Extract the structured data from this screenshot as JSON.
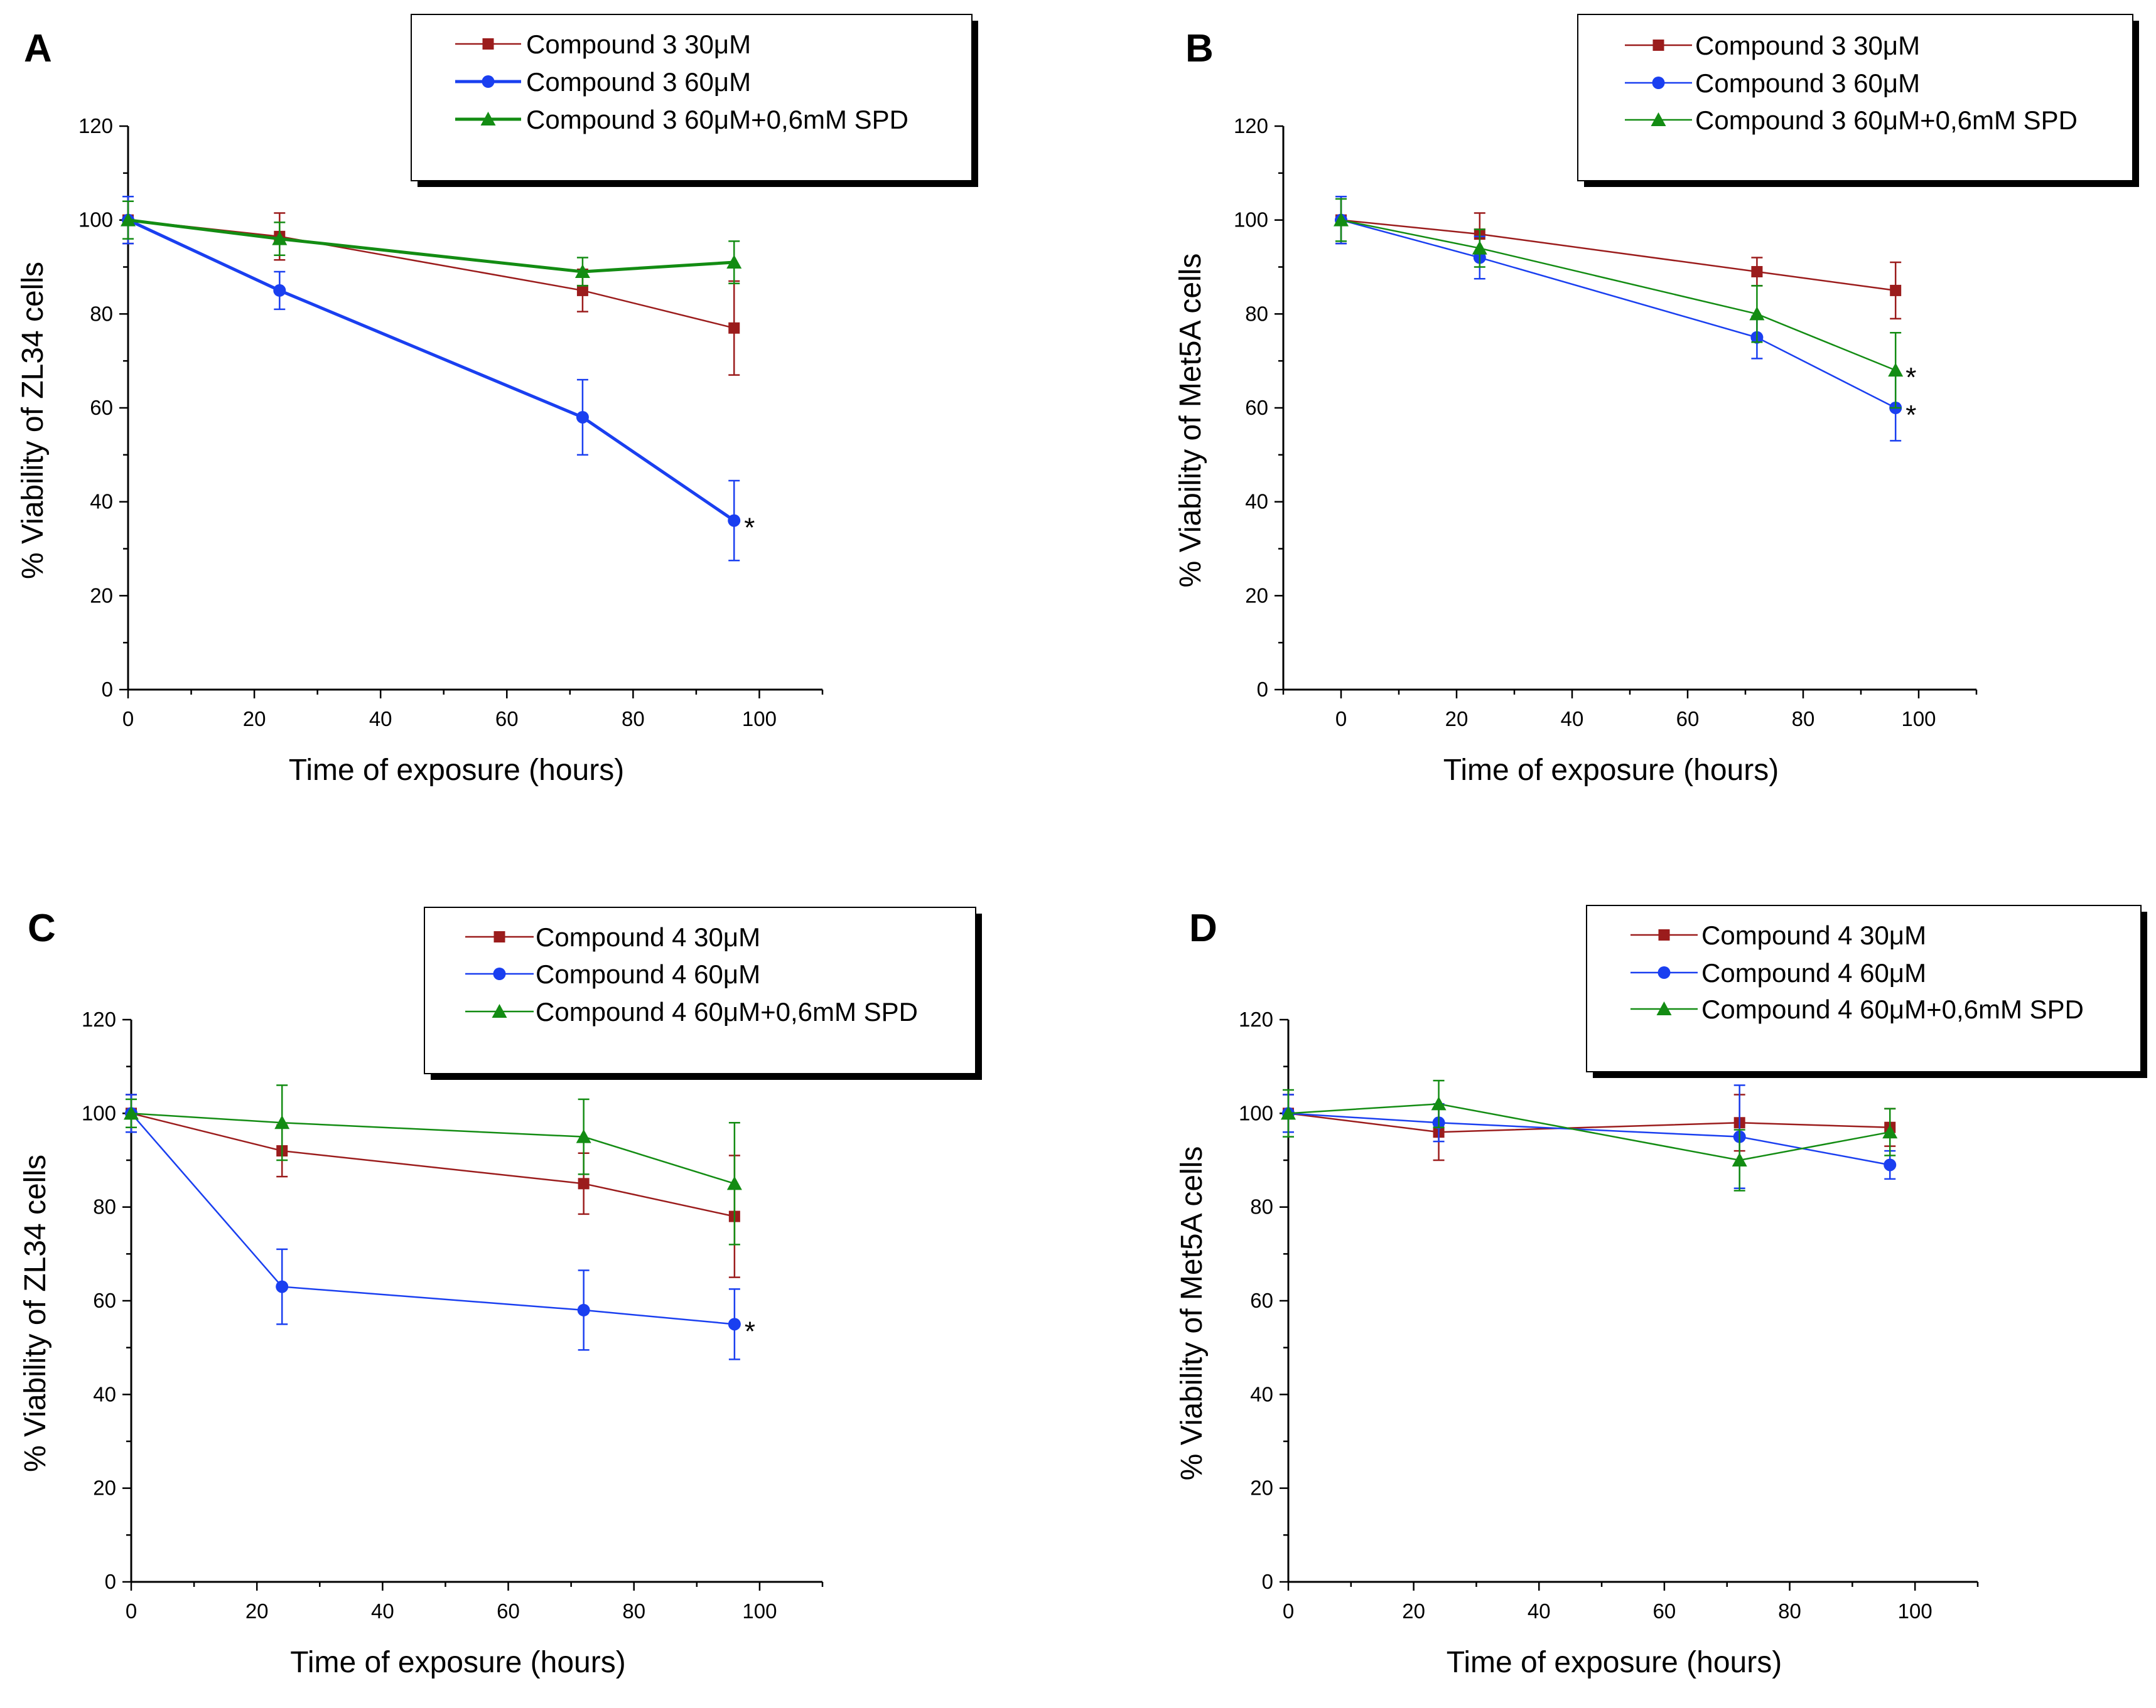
{
  "figure": {
    "panels": [
      "A",
      "B",
      "C",
      "D"
    ]
  },
  "colors": {
    "red": "#9b1c1c",
    "blue": "#1a3ff0",
    "green": "#138c13"
  },
  "chart_data": [
    {
      "type": "line",
      "panel": "A",
      "xlabel": "Time of exposure (hours)",
      "ylabel": "% Viability of ZL34 cells",
      "xlim": [
        0,
        110
      ],
      "ylim": [
        0,
        120
      ],
      "xticks": [
        0,
        20,
        40,
        60,
        80,
        100
      ],
      "yticks": [
        0,
        20,
        40,
        60,
        80,
        100,
        120
      ],
      "legend_position": "top",
      "x": [
        0,
        24,
        72,
        96
      ],
      "series": [
        {
          "name": "Compound 3 30μM",
          "color": "#9b1c1c",
          "marker": "square",
          "width": 2.5,
          "values": [
            100,
            96.5,
            85,
            77
          ],
          "errors": [
            5,
            5,
            4.5,
            10
          ],
          "stars": []
        },
        {
          "name": "Compound 3  60μM",
          "color": "#1a3ff0",
          "marker": "circle",
          "width": 5,
          "values": [
            100,
            85,
            58,
            36
          ],
          "errors": [
            5,
            4,
            8,
            8.5
          ],
          "stars": [
            "*"
          ]
        },
        {
          "name": "Compound 3  60μM+0,6mM SPD",
          "color": "#138c13",
          "marker": "triangle",
          "width": 5,
          "values": [
            100,
            96,
            89,
            91
          ],
          "errors": [
            4,
            3.5,
            3,
            4.5
          ],
          "stars": []
        }
      ]
    },
    {
      "type": "line",
      "panel": "B",
      "xlabel": "Time of exposure (hours)",
      "ylabel": "% Viability of Met5A cells",
      "xlim": [
        -10,
        110
      ],
      "ylim": [
        0,
        120
      ],
      "xticks": [
        0,
        20,
        40,
        60,
        80,
        100
      ],
      "yticks": [
        0,
        20,
        40,
        60,
        80,
        100,
        120
      ],
      "legend_position": "top-right",
      "x": [
        0,
        24,
        72,
        96
      ],
      "series": [
        {
          "name": "Compound 3 30μM",
          "color": "#9b1c1c",
          "marker": "square",
          "width": 2.5,
          "values": [
            100,
            97,
            89,
            85
          ],
          "errors": [
            5,
            4.5,
            3,
            6
          ],
          "stars": []
        },
        {
          "name": "Compound 3 60μM",
          "color": "#1a3ff0",
          "marker": "circle",
          "width": 2.5,
          "values": [
            100,
            92,
            75,
            60
          ],
          "errors": [
            5,
            4.5,
            4.5,
            7
          ],
          "stars": [
            "*"
          ]
        },
        {
          "name": "Compound 3 60μM+0,6mM SPD",
          "color": "#138c13",
          "marker": "triangle",
          "width": 2.5,
          "values": [
            100,
            94,
            80,
            68
          ],
          "errors": [
            4.5,
            4,
            6,
            8
          ],
          "stars": [
            "*"
          ]
        }
      ]
    },
    {
      "type": "line",
      "panel": "C",
      "xlabel": "Time of exposure (hours)",
      "ylabel": "% Viability of ZL34 cells",
      "xlim": [
        0,
        110
      ],
      "ylim": [
        0,
        120
      ],
      "xticks": [
        0,
        20,
        40,
        60,
        80,
        100
      ],
      "yticks": [
        0,
        20,
        40,
        60,
        80,
        100,
        120
      ],
      "legend_position": "top",
      "x": [
        0,
        24,
        72,
        96
      ],
      "series": [
        {
          "name": "Compound 4 30μM",
          "color": "#9b1c1c",
          "marker": "square",
          "width": 2.5,
          "values": [
            100,
            92,
            85,
            78
          ],
          "errors": [
            4,
            5.5,
            6.5,
            13
          ],
          "stars": []
        },
        {
          "name": "Compound 4 60μM",
          "color": "#1a3ff0",
          "marker": "circle",
          "width": 2.5,
          "values": [
            100,
            63,
            58,
            55
          ],
          "errors": [
            4,
            8,
            8.5,
            7.5
          ],
          "stars": [
            "*"
          ]
        },
        {
          "name": "Compound 4 60μM+0,6mM SPD",
          "color": "#138c13",
          "marker": "triangle",
          "width": 2.5,
          "values": [
            100,
            98,
            95,
            85
          ],
          "errors": [
            3,
            8,
            8,
            13
          ],
          "stars": []
        }
      ]
    },
    {
      "type": "line",
      "panel": "D",
      "xlabel": "Time of exposure (hours)",
      "ylabel": "% Viability of Met5A cells",
      "xlim": [
        0,
        110
      ],
      "ylim": [
        0,
        120
      ],
      "xticks": [
        0,
        20,
        40,
        60,
        80,
        100
      ],
      "yticks": [
        0,
        20,
        40,
        60,
        80,
        100,
        120
      ],
      "legend_position": "top-right",
      "x": [
        0,
        24,
        72,
        96
      ],
      "series": [
        {
          "name": "Compound 4 30μM",
          "color": "#9b1c1c",
          "marker": "square",
          "width": 2.5,
          "values": [
            100,
            96,
            98,
            97
          ],
          "errors": [
            4,
            6,
            6,
            4
          ],
          "stars": []
        },
        {
          "name": "Compound 4 60μM",
          "color": "#1a3ff0",
          "marker": "circle",
          "width": 2.5,
          "values": [
            100,
            98,
            95,
            89
          ],
          "errors": [
            4,
            4,
            11,
            3
          ],
          "stars": []
        },
        {
          "name": "Compound 4 60μM+0,6mM SPD",
          "color": "#138c13",
          "marker": "triangle",
          "width": 2.5,
          "values": [
            100,
            102,
            90,
            96
          ],
          "errors": [
            5,
            5,
            6.5,
            5
          ],
          "stars": []
        }
      ]
    }
  ]
}
